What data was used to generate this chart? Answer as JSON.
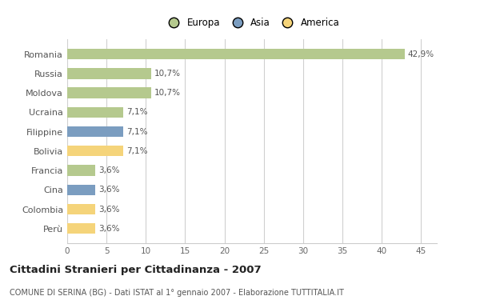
{
  "countries": [
    "Romania",
    "Russia",
    "Moldova",
    "Ucraina",
    "Filippine",
    "Bolivia",
    "Francia",
    "Cina",
    "Colombia",
    "Perù"
  ],
  "values": [
    42.9,
    10.7,
    10.7,
    7.1,
    7.1,
    7.1,
    3.6,
    3.6,
    3.6,
    3.6
  ],
  "labels": [
    "42,9%",
    "10,7%",
    "10,7%",
    "7,1%",
    "7,1%",
    "7,1%",
    "3,6%",
    "3,6%",
    "3,6%",
    "3,6%"
  ],
  "continents": [
    "Europa",
    "Europa",
    "Europa",
    "Europa",
    "Asia",
    "America",
    "Europa",
    "Asia",
    "America",
    "America"
  ],
  "colors": {
    "Europa": "#b5c98e",
    "Asia": "#7b9dc0",
    "America": "#f5d47a"
  },
  "legend_items": [
    "Europa",
    "Asia",
    "America"
  ],
  "xlim": [
    0,
    47
  ],
  "xticks": [
    0,
    5,
    10,
    15,
    20,
    25,
    30,
    35,
    40,
    45
  ],
  "title": "Cittadini Stranieri per Cittadinanza - 2007",
  "subtitle": "COMUNE DI SERINA (BG) - Dati ISTAT al 1° gennaio 2007 - Elaborazione TUTTITALIA.IT",
  "bg_color": "#ffffff",
  "grid_color": "#d0d0d0",
  "bar_height": 0.55
}
